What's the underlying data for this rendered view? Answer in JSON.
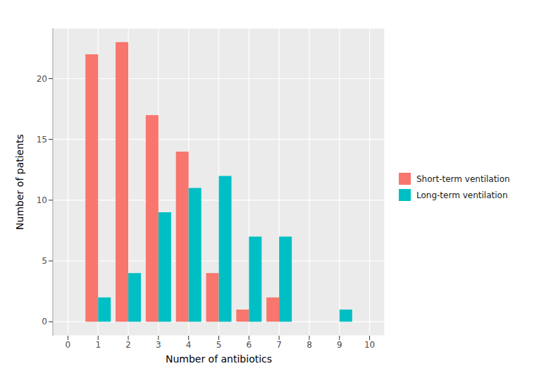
{
  "chart_data": {
    "type": "bar",
    "x_label": "Number of antibiotics",
    "y_label": "Number of patients",
    "categories": [
      "0",
      "1",
      "2",
      "3",
      "4",
      "5",
      "6",
      "7",
      "8",
      "9",
      "10"
    ],
    "series": [
      {
        "name": "Short-term ventilation",
        "color": "#F8766D",
        "values": [
          null,
          22,
          23,
          17,
          14,
          4,
          1,
          2,
          null,
          null,
          null
        ]
      },
      {
        "name": "Long-term ventilation",
        "color": "#00BFC4",
        "values": [
          null,
          2,
          4,
          9,
          11,
          12,
          7,
          7,
          null,
          1,
          null
        ]
      }
    ],
    "ylim": [
      -1.15,
      24.15
    ],
    "yticks": [
      0,
      5,
      10,
      15,
      20
    ],
    "grid": true,
    "legend": "right"
  }
}
